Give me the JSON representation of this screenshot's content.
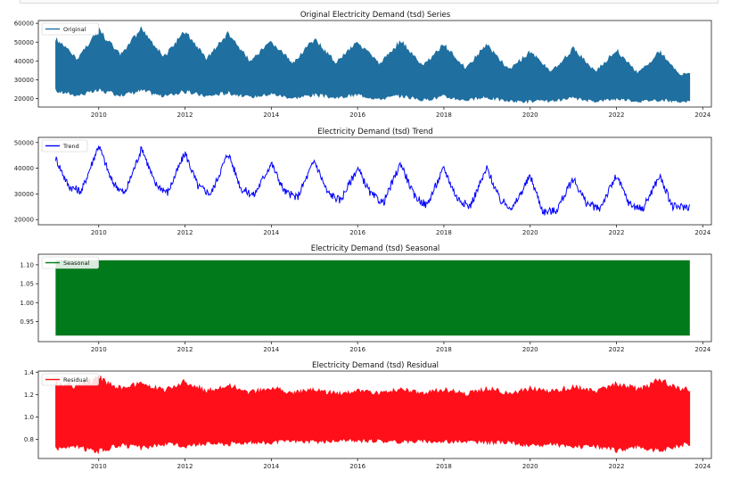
{
  "figure": {
    "titles": [
      "Original Electricity Demand (tsd) Series",
      "Electricity Demand (tsd) Trend",
      "Electricity Demand (tsd) Seasonal",
      "Electricity Demand (tsd) Residual"
    ]
  },
  "chart_data": [
    {
      "type": "area",
      "title": "Original Electricity Demand (tsd) Series",
      "legend": [
        "Original"
      ],
      "legend_position": "top-left",
      "color": "#1f6fa0",
      "xlabel": "",
      "ylabel": "",
      "x_ticks": [
        "2010",
        "2012",
        "2014",
        "2016",
        "2018",
        "2020",
        "2022",
        "2024"
      ],
      "y_ticks": [
        "20000",
        "30000",
        "40000",
        "50000",
        "60000"
      ],
      "xlim": [
        2008.6,
        2024.2
      ],
      "ylim": [
        15500,
        61500
      ],
      "x_range": [
        2009.0,
        2023.7
      ],
      "series": [
        {
          "x": [
            2009.0,
            2009.5,
            2010.0,
            2010.5,
            2011.0,
            2011.5,
            2012.0,
            2012.5,
            2013.0,
            2013.5,
            2014.0,
            2014.5,
            2015.0,
            2015.5,
            2016.0,
            2016.5,
            2017.0,
            2017.5,
            2018.0,
            2018.5,
            2019.0,
            2019.5,
            2020.0,
            2020.5,
            2021.0,
            2021.5,
            2022.0,
            2022.5,
            2023.0,
            2023.5,
            2023.7
          ],
          "upper": [
            53000,
            42000,
            58000,
            44000,
            59000,
            43000,
            57000,
            42000,
            56000,
            41000,
            51000,
            40000,
            53000,
            40000,
            52000,
            39000,
            52000,
            38000,
            50000,
            37000,
            50000,
            36000,
            46000,
            35000,
            48000,
            35000,
            47000,
            34000,
            46000,
            33000,
            35000
          ],
          "lower": [
            23000,
            21000,
            23000,
            21000,
            23000,
            20500,
            22500,
            20500,
            22000,
            20000,
            21500,
            19500,
            21000,
            19500,
            21000,
            19000,
            20500,
            18500,
            20000,
            18500,
            19500,
            18000,
            17500,
            18000,
            19000,
            18000,
            19000,
            18000,
            18500,
            17500,
            18000
          ]
        }
      ]
    },
    {
      "type": "line",
      "title": "Electricity Demand (tsd) Trend",
      "legend": [
        "Trend"
      ],
      "legend_position": "top-left",
      "color": "#0000ff",
      "xlabel": "",
      "ylabel": "",
      "x_ticks": [
        "2010",
        "2012",
        "2014",
        "2016",
        "2018",
        "2020",
        "2022",
        "2024"
      ],
      "y_ticks": [
        "20000",
        "30000",
        "40000",
        "50000"
      ],
      "xlim": [
        2008.6,
        2024.2
      ],
      "ylim": [
        18000,
        52000
      ],
      "series": [
        {
          "name": "Trend",
          "x": [
            2009.0,
            2009.3,
            2009.6,
            2010.0,
            2010.3,
            2010.6,
            2011.0,
            2011.3,
            2011.6,
            2012.0,
            2012.3,
            2012.6,
            2013.0,
            2013.3,
            2013.6,
            2014.0,
            2014.3,
            2014.6,
            2015.0,
            2015.3,
            2015.6,
            2016.0,
            2016.3,
            2016.6,
            2017.0,
            2017.3,
            2017.6,
            2018.0,
            2018.3,
            2018.6,
            2019.0,
            2019.3,
            2019.6,
            2020.0,
            2020.3,
            2020.6,
            2021.0,
            2021.3,
            2021.6,
            2022.0,
            2022.3,
            2022.6,
            2023.0,
            2023.3,
            2023.7
          ],
          "y": [
            44000,
            33000,
            31000,
            49000,
            35000,
            30000,
            48000,
            34000,
            30500,
            46000,
            33000,
            30000,
            46000,
            32000,
            29500,
            42000,
            31000,
            28500,
            43000,
            30500,
            27500,
            40000,
            30000,
            26500,
            42000,
            29500,
            25500,
            40000,
            28500,
            25000,
            40000,
            27500,
            24500,
            37000,
            23000,
            23500,
            36000,
            26500,
            24000,
            37000,
            26000,
            24000,
            37000,
            25000,
            25000
          ]
        }
      ]
    },
    {
      "type": "area",
      "title": "Electricity Demand (tsd) Seasonal",
      "legend": [
        "Seasonal"
      ],
      "legend_position": "top-left",
      "color": "#007a1a",
      "xlabel": "",
      "ylabel": "",
      "x_ticks": [
        "2010",
        "2012",
        "2014",
        "2016",
        "2018",
        "2020",
        "2022",
        "2024"
      ],
      "y_ticks": [
        "0.95",
        "1.00",
        "1.05",
        "1.10"
      ],
      "xlim": [
        2008.6,
        2024.2
      ],
      "ylim": [
        0.897,
        1.128
      ],
      "x_range": [
        2009.0,
        2023.7
      ],
      "band": [
        0.913,
        1.112
      ]
    },
    {
      "type": "area",
      "title": "Electricity Demand (tsd) Residual",
      "legend": [
        "Residual"
      ],
      "legend_position": "top-left",
      "color": "#ff0f1a",
      "xlabel": "",
      "ylabel": "",
      "x_ticks": [
        "2010",
        "2012",
        "2014",
        "2016",
        "2018",
        "2020",
        "2022",
        "2024"
      ],
      "y_ticks": [
        "0.8",
        "1.0",
        "1.2",
        "1.4"
      ],
      "xlim": [
        2008.6,
        2024.2
      ],
      "ylim": [
        0.63,
        1.41
      ],
      "x_range": [
        2009.0,
        2023.7
      ],
      "series": [
        {
          "x": [
            2009.0,
            2009.5,
            2010.0,
            2010.5,
            2011.0,
            2011.5,
            2012.0,
            2012.5,
            2013.0,
            2013.5,
            2014.0,
            2014.5,
            2015.0,
            2015.5,
            2016.0,
            2016.5,
            2017.0,
            2017.5,
            2018.0,
            2018.5,
            2019.0,
            2019.5,
            2020.0,
            2020.5,
            2021.0,
            2021.5,
            2022.0,
            2022.5,
            2023.0,
            2023.5,
            2023.7
          ],
          "upper": [
            1.33,
            1.3,
            1.38,
            1.28,
            1.33,
            1.26,
            1.35,
            1.25,
            1.32,
            1.24,
            1.29,
            1.24,
            1.27,
            1.23,
            1.26,
            1.23,
            1.27,
            1.23,
            1.27,
            1.23,
            1.28,
            1.23,
            1.28,
            1.25,
            1.3,
            1.26,
            1.33,
            1.27,
            1.36,
            1.28,
            1.27
          ],
          "lower": [
            0.7,
            0.71,
            0.67,
            0.73,
            0.7,
            0.74,
            0.72,
            0.75,
            0.74,
            0.76,
            0.75,
            0.77,
            0.76,
            0.77,
            0.77,
            0.77,
            0.76,
            0.77,
            0.76,
            0.77,
            0.75,
            0.76,
            0.72,
            0.74,
            0.71,
            0.72,
            0.68,
            0.72,
            0.67,
            0.73,
            0.74
          ]
        }
      ]
    }
  ]
}
